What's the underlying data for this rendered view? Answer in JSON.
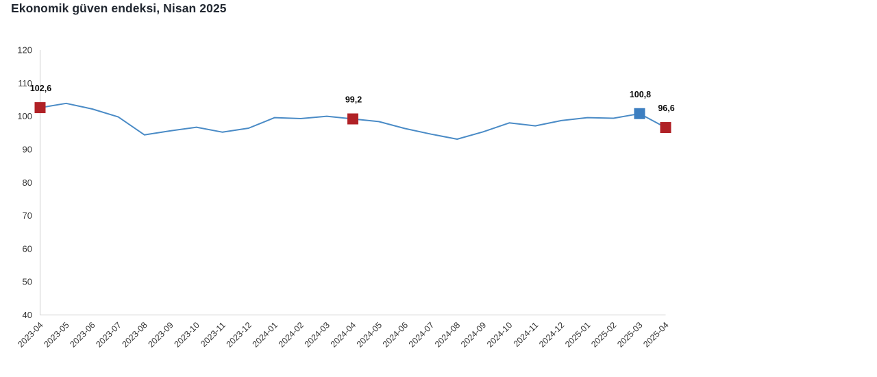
{
  "title": "Ekonomik güven endeksi, Nisan 2025",
  "chart_data": {
    "type": "line",
    "title": "Ekonomik güven endeksi, Nisan 2025",
    "categories": [
      "2023-04",
      "2023-05",
      "2023-06",
      "2023-07",
      "2023-08",
      "2023-09",
      "2023-10",
      "2023-11",
      "2023-12",
      "2024-01",
      "2024-02",
      "2024-03",
      "2024-04",
      "2024-05",
      "2024-06",
      "2024-07",
      "2024-08",
      "2024-09",
      "2024-10",
      "2024-11",
      "2024-12",
      "2025-01",
      "2025-02",
      "2025-03",
      "2025-04"
    ],
    "series": [
      {
        "name": "Ekonomik güven endeksi",
        "values": [
          102.6,
          103.9,
          102.2,
          99.8,
          94.4,
          95.6,
          96.7,
          95.2,
          96.4,
          99.6,
          99.3,
          100.0,
          99.2,
          98.4,
          96.3,
          94.6,
          93.1,
          95.3,
          98.0,
          97.1,
          98.7,
          99.6,
          99.4,
          100.8,
          96.6
        ]
      }
    ],
    "ylim": [
      40,
      120
    ],
    "ytick_step": 10,
    "ytick_labels": [
      "40",
      "50",
      "60",
      "70",
      "80",
      "90",
      "100",
      "110",
      "120"
    ],
    "grid": false,
    "legend_position": "none",
    "xlabel": "",
    "ylabel": "",
    "line_color": "#4a8bc6",
    "axis_color": "#cccccc",
    "tick_label_color": "#333333",
    "marked_points": [
      {
        "category": "2023-04",
        "value": 102.6,
        "label": "102,6",
        "color": "#b02126"
      },
      {
        "category": "2024-04",
        "value": 99.2,
        "label": "99,2",
        "color": "#b02126"
      },
      {
        "category": "2025-03",
        "value": 100.8,
        "label": "100,8",
        "color": "#3d7fc1"
      },
      {
        "category": "2025-04",
        "value": 96.6,
        "label": "96,6",
        "color": "#b02126"
      }
    ]
  }
}
